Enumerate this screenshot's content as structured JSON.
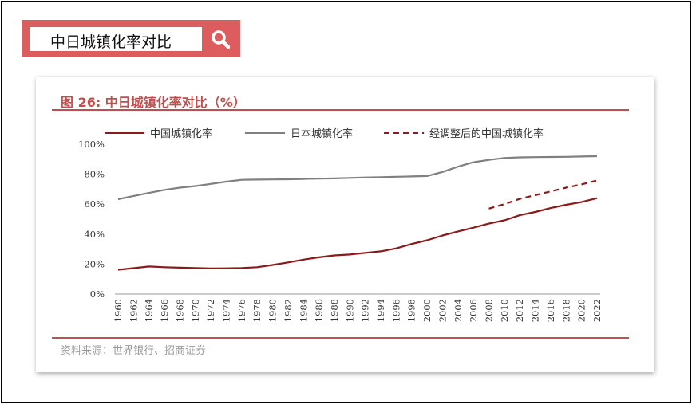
{
  "search": {
    "query": "中日城镇化率对比",
    "icon": "search-icon"
  },
  "figure": {
    "title": "图 26:  中日城镇化率对比（%）",
    "source": "资料来源：世界银行、招商证券"
  },
  "colors": {
    "china": "#8b1a1a",
    "japan": "#808080",
    "adjusted": "#8b1a1a",
    "accent": "#c0504d",
    "search_bg": "#dd5d5f"
  },
  "chart_data": {
    "type": "line",
    "title": "中日城镇化率对比（%）",
    "ylim": [
      0,
      100
    ],
    "y_ticks": [
      "0%",
      "20%",
      "40%",
      "60%",
      "80%",
      "100%"
    ],
    "x_ticks": [
      "1960",
      "1962",
      "1964",
      "1966",
      "1968",
      "1970",
      "1972",
      "1974",
      "1976",
      "1978",
      "1980",
      "1982",
      "1984",
      "1986",
      "1988",
      "1990",
      "1992",
      "1994",
      "1996",
      "1998",
      "2000",
      "2002",
      "2004",
      "2006",
      "2008",
      "2010",
      "2012",
      "2014",
      "2016",
      "2018",
      "2020",
      "2022"
    ],
    "legend_position": "top",
    "series": [
      {
        "name": "中国城镇化率",
        "style": "solid",
        "points": [
          [
            1960,
            16.2
          ],
          [
            1962,
            17.3
          ],
          [
            1964,
            18.4
          ],
          [
            1966,
            17.9
          ],
          [
            1968,
            17.6
          ],
          [
            1970,
            17.4
          ],
          [
            1972,
            17.1
          ],
          [
            1974,
            17.2
          ],
          [
            1976,
            17.4
          ],
          [
            1978,
            17.9
          ],
          [
            1980,
            19.4
          ],
          [
            1982,
            21.1
          ],
          [
            1984,
            23.0
          ],
          [
            1986,
            24.5
          ],
          [
            1988,
            25.8
          ],
          [
            1990,
            26.4
          ],
          [
            1992,
            27.5
          ],
          [
            1994,
            28.5
          ],
          [
            1996,
            30.5
          ],
          [
            1998,
            33.4
          ],
          [
            2000,
            35.9
          ],
          [
            2002,
            39.1
          ],
          [
            2004,
            41.8
          ],
          [
            2006,
            44.3
          ],
          [
            2008,
            47.0
          ],
          [
            2010,
            49.2
          ],
          [
            2012,
            52.6
          ],
          [
            2014,
            54.8
          ],
          [
            2016,
            57.4
          ],
          [
            2018,
            59.6
          ],
          [
            2020,
            61.4
          ],
          [
            2022,
            64.0
          ]
        ]
      },
      {
        "name": "日本城镇化率",
        "style": "solid",
        "points": [
          [
            1960,
            63.3
          ],
          [
            1962,
            65.5
          ],
          [
            1964,
            67.5
          ],
          [
            1966,
            69.5
          ],
          [
            1968,
            71.0
          ],
          [
            1970,
            72.1
          ],
          [
            1972,
            73.5
          ],
          [
            1974,
            75.0
          ],
          [
            1976,
            76.2
          ],
          [
            1978,
            76.4
          ],
          [
            1980,
            76.5
          ],
          [
            1982,
            76.6
          ],
          [
            1984,
            76.8
          ],
          [
            1986,
            77.0
          ],
          [
            1988,
            77.2
          ],
          [
            1990,
            77.5
          ],
          [
            1992,
            77.8
          ],
          [
            1994,
            78.0
          ],
          [
            1996,
            78.3
          ],
          [
            1998,
            78.5
          ],
          [
            2000,
            78.8
          ],
          [
            2002,
            81.5
          ],
          [
            2004,
            85.0
          ],
          [
            2006,
            88.0
          ],
          [
            2008,
            89.5
          ],
          [
            2010,
            90.8
          ],
          [
            2012,
            91.2
          ],
          [
            2014,
            91.4
          ],
          [
            2016,
            91.5
          ],
          [
            2018,
            91.6
          ],
          [
            2020,
            91.8
          ],
          [
            2022,
            92.0
          ]
        ]
      },
      {
        "name": "经调整后的中国城镇化率",
        "style": "dashed",
        "points": [
          [
            2008,
            57.0
          ],
          [
            2010,
            60.0
          ],
          [
            2012,
            63.5
          ],
          [
            2014,
            66.0
          ],
          [
            2016,
            68.5
          ],
          [
            2018,
            71.0
          ],
          [
            2020,
            73.2
          ],
          [
            2022,
            75.8
          ]
        ]
      }
    ]
  }
}
